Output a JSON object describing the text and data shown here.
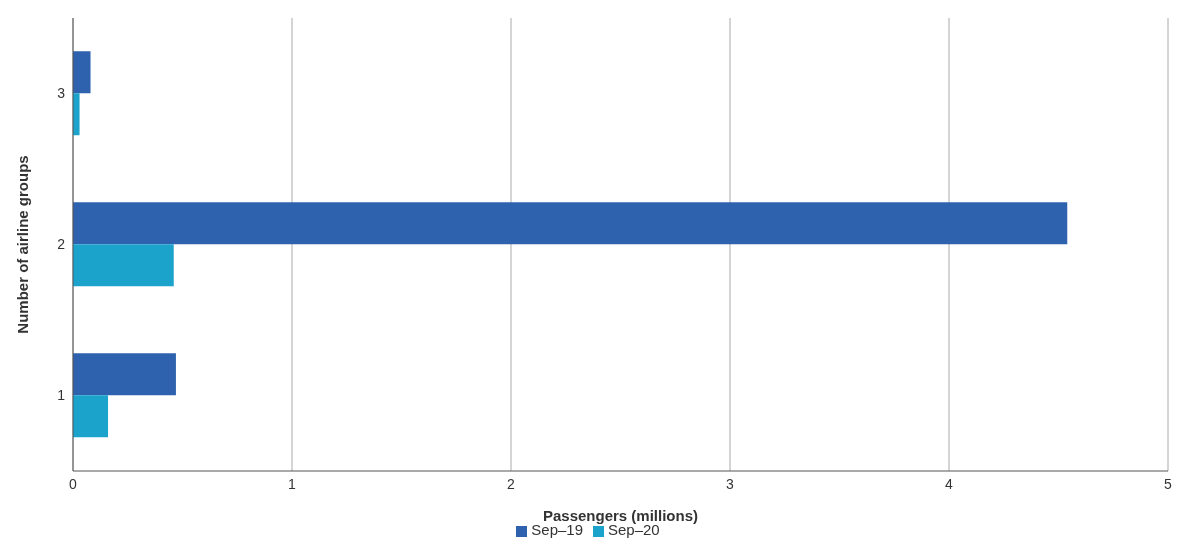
{
  "chart_data": {
    "type": "bar",
    "orientation": "horizontal",
    "xlabel": "Passengers (millions)",
    "ylabel": "Number of airline groups",
    "categories": [
      "3",
      "2",
      "1"
    ],
    "series": [
      {
        "name": "Sep–19",
        "color": "#2e62ae",
        "values": [
          0.08,
          4.54,
          0.47
        ]
      },
      {
        "name": "Sep–20",
        "color": "#1ba3cc",
        "values": [
          0.03,
          0.46,
          0.16
        ]
      }
    ],
    "xlim": [
      0,
      5
    ],
    "xticks": [
      0,
      1,
      2,
      3,
      4,
      5
    ],
    "grid": "x",
    "legend": "bottom"
  }
}
